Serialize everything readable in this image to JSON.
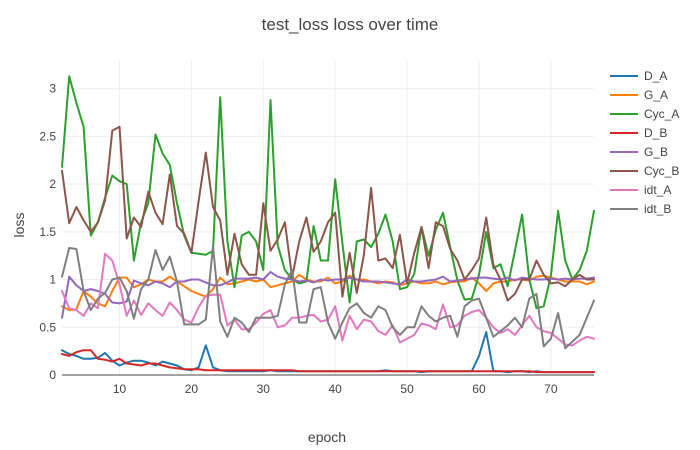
{
  "chart_data": {
    "type": "line",
    "title": "test_loss loss over time",
    "xlabel": "epoch",
    "ylabel": "loss",
    "xlim": [
      2,
      76
    ],
    "ylim": [
      0,
      3.3
    ],
    "xticks": [
      10,
      20,
      30,
      40,
      50,
      60,
      70
    ],
    "yticks": [
      0,
      0.5,
      1,
      1.5,
      2,
      2.5,
      3
    ],
    "ytick_labels": [
      "0",
      "0.5",
      "1",
      "1.5",
      "2",
      "2.5",
      "3"
    ],
    "grid": true,
    "legend_position": "top-right",
    "x": [
      2,
      3,
      4,
      5,
      6,
      7,
      8,
      9,
      10,
      11,
      12,
      13,
      14,
      15,
      16,
      17,
      18,
      19,
      20,
      21,
      22,
      23,
      24,
      25,
      26,
      27,
      28,
      29,
      30,
      31,
      32,
      33,
      34,
      35,
      36,
      37,
      38,
      39,
      40,
      41,
      42,
      43,
      44,
      45,
      46,
      47,
      48,
      49,
      50,
      51,
      52,
      53,
      54,
      55,
      56,
      57,
      58,
      59,
      60,
      61,
      62,
      63,
      64,
      65,
      66,
      67,
      68,
      69,
      70,
      71,
      72,
      73,
      74,
      75,
      76
    ],
    "series": [
      {
        "name": "D_A",
        "color": "#1f77b4",
        "values": [
          0.26,
          0.22,
          0.2,
          0.17,
          0.17,
          0.18,
          0.23,
          0.15,
          0.1,
          0.13,
          0.15,
          0.15,
          0.13,
          0.1,
          0.14,
          0.12,
          0.1,
          0.06,
          0.05,
          0.08,
          0.31,
          0.08,
          0.05,
          0.04,
          0.04,
          0.04,
          0.04,
          0.04,
          0.04,
          0.05,
          0.04,
          0.04,
          0.04,
          0.04,
          0.04,
          0.04,
          0.04,
          0.04,
          0.04,
          0.04,
          0.04,
          0.04,
          0.04,
          0.04,
          0.04,
          0.05,
          0.04,
          0.04,
          0.04,
          0.04,
          0.03,
          0.04,
          0.04,
          0.04,
          0.04,
          0.04,
          0.04,
          0.04,
          0.2,
          0.45,
          0.04,
          0.04,
          0.03,
          0.04,
          0.04,
          0.03,
          0.04,
          0.03,
          0.03,
          0.03,
          0.03,
          0.03,
          0.03,
          0.03,
          0.03
        ]
      },
      {
        "name": "G_A",
        "color": "#ff7f0e",
        "values": [
          0.72,
          0.68,
          0.69,
          0.88,
          0.82,
          0.75,
          0.72,
          0.88,
          1.02,
          1.02,
          0.92,
          0.95,
          1.0,
          0.98,
          0.98,
          1.03,
          0.98,
          0.93,
          0.88,
          0.85,
          0.82,
          0.9,
          1.02,
          0.95,
          0.96,
          0.98,
          1.0,
          0.98,
          1.0,
          0.92,
          0.94,
          0.96,
          0.98,
          1.05,
          1.0,
          0.98,
          0.98,
          1.02,
          0.96,
          0.98,
          1.04,
          1.0,
          1.0,
          0.98,
          0.96,
          0.98,
          0.97,
          0.94,
          0.96,
          0.98,
          0.96,
          0.96,
          0.98,
          0.95,
          0.97,
          0.98,
          0.98,
          1.02,
          0.96,
          0.88,
          0.96,
          0.98,
          0.98,
          1.0,
          1.0,
          0.99,
          1.03,
          1.04,
          1.02,
          1.0,
          0.98,
          0.98,
          0.98,
          0.95,
          0.98
        ]
      },
      {
        "name": "Cyc_A",
        "color": "#2ca02c",
        "values": [
          2.18,
          3.13,
          2.85,
          2.6,
          1.46,
          1.6,
          1.86,
          2.09,
          2.03,
          2.0,
          1.2,
          1.6,
          1.8,
          2.52,
          2.32,
          2.2,
          1.8,
          1.46,
          1.28,
          1.27,
          1.26,
          1.3,
          2.91,
          1.4,
          0.92,
          1.46,
          1.5,
          1.4,
          1.1,
          2.88,
          1.36,
          1.1,
          1.0,
          0.96,
          0.98,
          1.56,
          1.2,
          1.2,
          2.05,
          1.38,
          0.76,
          1.4,
          1.42,
          1.34,
          1.48,
          1.68,
          1.4,
          0.9,
          0.92,
          1.06,
          1.55,
          1.25,
          1.52,
          1.7,
          1.34,
          0.99,
          0.79,
          0.8,
          1.05,
          1.5,
          1.12,
          1.16,
          0.93,
          1.3,
          1.68,
          1.0,
          0.7,
          0.72,
          1.04,
          1.72,
          1.2,
          1.0,
          1.1,
          1.3,
          1.72
        ]
      },
      {
        "name": "D_B",
        "color": "#d62728",
        "values": [
          0.22,
          0.2,
          0.24,
          0.26,
          0.26,
          0.17,
          0.16,
          0.14,
          0.17,
          0.12,
          0.11,
          0.1,
          0.12,
          0.12,
          0.1,
          0.08,
          0.07,
          0.06,
          0.06,
          0.06,
          0.05,
          0.05,
          0.05,
          0.05,
          0.05,
          0.05,
          0.05,
          0.05,
          0.05,
          0.05,
          0.05,
          0.05,
          0.05,
          0.04,
          0.04,
          0.04,
          0.04,
          0.04,
          0.04,
          0.04,
          0.04,
          0.04,
          0.04,
          0.04,
          0.04,
          0.04,
          0.04,
          0.04,
          0.04,
          0.04,
          0.04,
          0.04,
          0.04,
          0.04,
          0.04,
          0.04,
          0.04,
          0.04,
          0.04,
          0.04,
          0.04,
          0.04,
          0.04,
          0.04,
          0.04,
          0.04,
          0.03,
          0.03,
          0.03,
          0.03,
          0.03,
          0.03,
          0.03,
          0.03,
          0.03
        ]
      },
      {
        "name": "G_B",
        "color": "#9467bd",
        "values": [
          0.6,
          1.03,
          0.94,
          0.88,
          0.9,
          0.88,
          0.85,
          0.76,
          0.75,
          0.77,
          0.99,
          0.96,
          0.94,
          0.98,
          0.96,
          0.92,
          0.98,
          0.98,
          1.0,
          1.0,
          0.97,
          0.94,
          0.94,
          0.97,
          1.01,
          1.01,
          1.01,
          1.02,
          1.0,
          1.08,
          1.03,
          1.01,
          1.0,
          0.98,
          0.99,
          0.97,
          1.0,
          0.99,
          1.0,
          1.0,
          1.02,
          1.0,
          0.98,
          0.98,
          0.98,
          0.97,
          0.96,
          0.95,
          1.0,
          0.98,
          0.98,
          0.99,
          1.0,
          1.03,
          0.98,
          0.99,
          1.0,
          1.01,
          1.02,
          1.02,
          1.01,
          1.0,
          1.02,
          0.99,
          1.02,
          1.01,
          1.0,
          1.0,
          1.01,
          1.0,
          1.01,
          1.0,
          1.01,
          1.01,
          1.02
        ]
      },
      {
        "name": "Cyc_B",
        "color": "#8c564b",
        "values": [
          2.14,
          1.59,
          1.76,
          1.62,
          1.5,
          1.6,
          1.83,
          2.56,
          2.6,
          1.43,
          1.65,
          1.55,
          1.92,
          1.7,
          1.58,
          2.1,
          1.56,
          1.48,
          1.28,
          1.82,
          2.33,
          1.76,
          1.62,
          1.05,
          1.48,
          1.16,
          1.05,
          1.05,
          1.8,
          1.3,
          1.42,
          1.6,
          1.02,
          1.4,
          1.65,
          1.29,
          1.4,
          1.6,
          1.7,
          0.82,
          1.28,
          0.86,
          1.26,
          1.96,
          1.2,
          1.22,
          1.12,
          1.47,
          0.96,
          1.28,
          1.55,
          1.12,
          1.6,
          1.56,
          1.32,
          1.2,
          1.0,
          1.1,
          1.22,
          1.65,
          1.15,
          1.0,
          0.78,
          0.85,
          1.0,
          1.0,
          1.2,
          1.05,
          0.96,
          0.97,
          0.93,
          1.0,
          1.05,
          1.0,
          1.0
        ]
      },
      {
        "name": "idt_A",
        "color": "#e377c2",
        "values": [
          0.88,
          0.7,
          0.68,
          0.62,
          0.75,
          0.7,
          1.27,
          1.2,
          0.95,
          0.62,
          0.78,
          0.63,
          0.75,
          0.68,
          0.62,
          0.76,
          0.68,
          0.58,
          0.55,
          0.71,
          0.83,
          0.84,
          0.84,
          0.52,
          0.58,
          0.48,
          0.48,
          0.55,
          0.64,
          0.68,
          0.5,
          0.52,
          0.6,
          0.6,
          0.62,
          0.63,
          0.56,
          0.58,
          0.72,
          0.36,
          0.62,
          0.48,
          0.58,
          0.56,
          0.46,
          0.42,
          0.52,
          0.34,
          0.38,
          0.42,
          0.54,
          0.52,
          0.48,
          0.74,
          0.5,
          0.52,
          0.62,
          0.66,
          0.68,
          0.6,
          0.5,
          0.44,
          0.48,
          0.42,
          0.52,
          0.62,
          0.5,
          0.46,
          0.44,
          0.38,
          0.32,
          0.31,
          0.36,
          0.4,
          0.38
        ]
      },
      {
        "name": "idt_B",
        "color": "#7f7f7f",
        "values": [
          1.03,
          1.33,
          1.32,
          0.88,
          0.68,
          0.8,
          0.86,
          1.0,
          1.02,
          0.88,
          0.59,
          0.9,
          1.0,
          1.31,
          1.1,
          1.24,
          0.98,
          0.53,
          0.53,
          0.53,
          0.58,
          1.35,
          0.56,
          0.4,
          0.6,
          0.55,
          0.45,
          0.6,
          0.6,
          0.6,
          0.62,
          0.95,
          1.1,
          0.55,
          0.55,
          0.9,
          0.92,
          0.55,
          0.38,
          0.55,
          0.7,
          0.75,
          0.65,
          0.6,
          0.72,
          0.68,
          0.5,
          0.42,
          0.5,
          0.5,
          0.72,
          0.62,
          0.56,
          0.6,
          0.62,
          0.4,
          0.72,
          0.78,
          0.8,
          0.6,
          0.4,
          0.46,
          0.52,
          0.6,
          0.5,
          0.8,
          0.85,
          0.3,
          0.38,
          0.65,
          0.28,
          0.35,
          0.42,
          0.6,
          0.78
        ]
      }
    ]
  }
}
